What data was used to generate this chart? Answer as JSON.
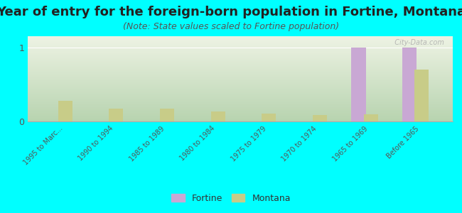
{
  "title": "Year of entry for the foreign-born population in Fortine, Montana",
  "subtitle": "(Note: State values scaled to Fortine population)",
  "categories": [
    "1995 to Marc...",
    "1990 to 1994",
    "1985 to 1989",
    "1980 to 1984",
    "1975 to 1979",
    "1970 to 1974",
    "1965 to 1969",
    "Before 1965"
  ],
  "fortine_values": [
    0,
    0,
    0,
    0,
    0,
    0,
    1,
    1
  ],
  "montana_values": [
    0.28,
    0.17,
    0.17,
    0.13,
    0.11,
    0.09,
    0.1,
    0.7
  ],
  "fortine_color": "#c9a8d4",
  "montana_color": "#c8cc88",
  "background_color": "#00ffff",
  "plot_bg_top": "#b8d4b0",
  "plot_bg_bottom": "#eef3e4",
  "bar_width": 0.28,
  "ylim": [
    0,
    1.15
  ],
  "yticks": [
    0,
    1
  ],
  "title_fontsize": 13,
  "subtitle_fontsize": 9,
  "watermark": "  City-Data.com"
}
